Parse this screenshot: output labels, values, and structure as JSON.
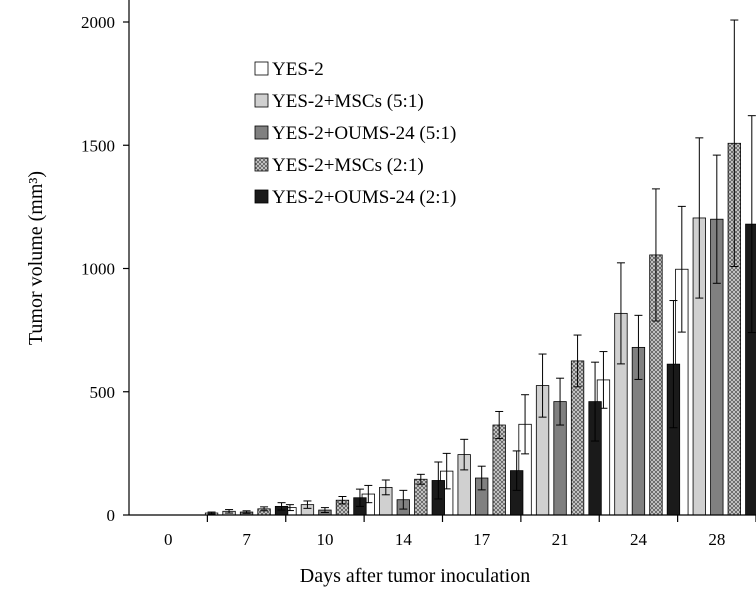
{
  "chart_data": {
    "type": "bar",
    "title": "",
    "xlabel": "Days after tumor inoculation",
    "ylabel": "Tumor volume (mm³)",
    "ylim": [
      0,
      2000
    ],
    "yticks": [
      "0",
      "500",
      "1000",
      "1500",
      "2000"
    ],
    "categories": [
      "0",
      "7",
      "10",
      "14",
      "17",
      "21",
      "24",
      "28"
    ],
    "legend_position": "top-left",
    "error_bars": true,
    "series": [
      {
        "name": "YES-2",
        "fill": "#ffffff",
        "pattern": "none",
        "values": [
          0,
          8,
          30,
          85,
          178,
          368,
          548,
          997
        ],
        "errors": [
          0,
          4,
          12,
          35,
          72,
          120,
          115,
          255
        ]
      },
      {
        "name": "YES-2+MSCs (5:1)",
        "fill": "#d0d0d0",
        "pattern": "none",
        "values": [
          0,
          15,
          42,
          112,
          245,
          525,
          818,
          1205
        ],
        "errors": [
          0,
          7,
          15,
          30,
          62,
          128,
          205,
          325
        ]
      },
      {
        "name": "YES-2+OUMS-24 (5:1)",
        "fill": "#808080",
        "pattern": "none",
        "values": [
          0,
          12,
          20,
          62,
          150,
          460,
          680,
          1200
        ],
        "errors": [
          0,
          5,
          10,
          38,
          48,
          95,
          130,
          260
        ]
      },
      {
        "name": "YES-2+MSCs (2:1)",
        "fill": "#cfcfcf",
        "pattern": "crosshatch",
        "values": [
          0,
          25,
          60,
          145,
          365,
          625,
          1055,
          1508
        ],
        "errors": [
          0,
          8,
          15,
          20,
          55,
          105,
          268,
          500
        ]
      },
      {
        "name": "YES-2+OUMS-24 (2:1)",
        "fill": "#1a1a1a",
        "pattern": "none",
        "values": [
          0,
          35,
          70,
          140,
          180,
          460,
          612,
          1180
        ],
        "errors": [
          0,
          15,
          35,
          75,
          80,
          160,
          258,
          440
        ]
      }
    ]
  }
}
